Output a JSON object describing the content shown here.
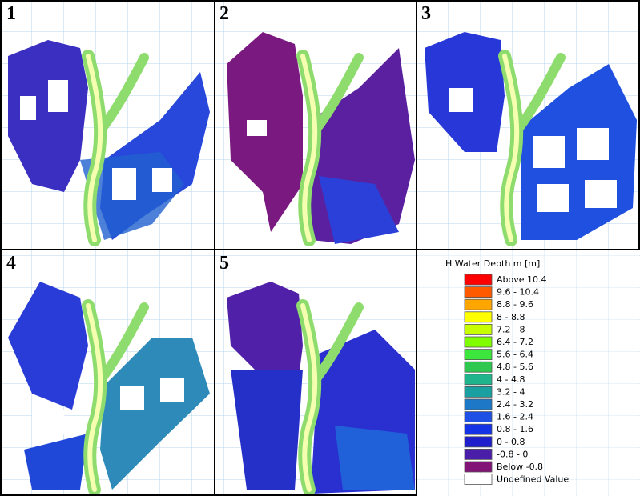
{
  "panels": [
    {
      "label": "1"
    },
    {
      "label": "2"
    },
    {
      "label": "3"
    },
    {
      "label": "4"
    },
    {
      "label": "5"
    }
  ],
  "legend": {
    "title": "H Water Depth m [m]",
    "items": [
      {
        "label": "Above 10.4",
        "color": "#ff0000"
      },
      {
        "label": "9.6 - 10.4",
        "color": "#ff5a00"
      },
      {
        "label": "8.8 - 9.6",
        "color": "#ffa500"
      },
      {
        "label": "8 - 8.8",
        "color": "#ffff00"
      },
      {
        "label": "7.2 - 8",
        "color": "#c8ff00"
      },
      {
        "label": "6.4 - 7.2",
        "color": "#7fff00"
      },
      {
        "label": "5.6 - 6.4",
        "color": "#3ce63c"
      },
      {
        "label": "4.8 - 5.6",
        "color": "#2ec850"
      },
      {
        "label": "4 - 4.8",
        "color": "#20b48c"
      },
      {
        "label": "3.2 - 4",
        "color": "#1aa0a0"
      },
      {
        "label": "2.4 - 3.2",
        "color": "#1e78c8"
      },
      {
        "label": "1.6 - 2.4",
        "color": "#1e50e6"
      },
      {
        "label": "0.8 - 1.6",
        "color": "#1432e6"
      },
      {
        "label": "0 - 0.8",
        "color": "#1e1ecd"
      },
      {
        "label": "-0.8 - 0",
        "color": "#4b1eaa"
      },
      {
        "label": "Below -0.8",
        "color": "#821478"
      },
      {
        "label": "Undefined Value",
        "color": "#ffffff"
      }
    ]
  }
}
